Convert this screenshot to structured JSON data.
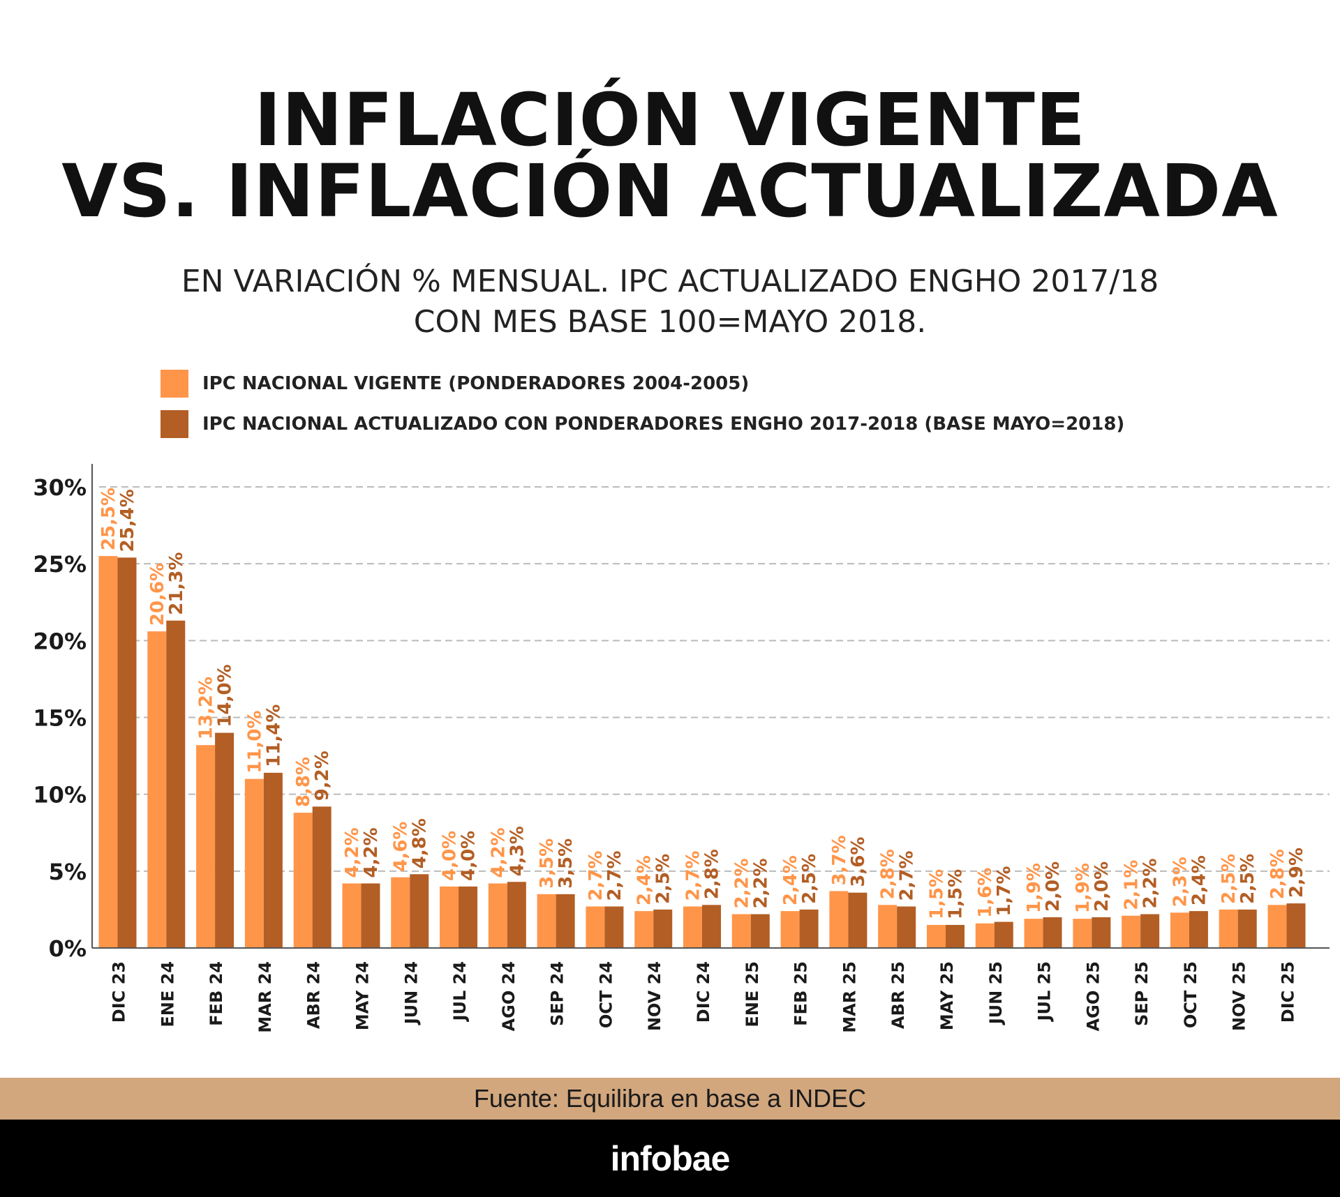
{
  "header": {
    "title_line1": "INFLACIÓN VIGENTE",
    "title_line2": "VS. INFLACIÓN ACTUALIZADA",
    "subtitle_line1": "EN VARIACIÓN % MENSUAL. IPC ACTUALIZADO ENGHO 2017/18",
    "subtitle_line2": "CON MES BASE 100=MAYO 2018."
  },
  "source": "Fuente:  Equilibra en base a INDEC",
  "logo": "infobae",
  "colors": {
    "vigente": "#ff9549",
    "actualizado": "#b35e24",
    "grid": "#bbbbbb",
    "source_band": "#d2a77e"
  },
  "chart_data": {
    "type": "bar",
    "categories": [
      "DIC 23",
      "ENE 24",
      "FEB 24",
      "MAR 24",
      "ABR 24",
      "MAY 24",
      "JUN 24",
      "JUL 24",
      "AGO 24",
      "SEP 24",
      "OCT 24",
      "NOV 24",
      "DIC 24",
      "ENE 25",
      "FEB 25",
      "MAR 25",
      "ABR 25",
      "MAY 25",
      "JUN 25",
      "JUL 25",
      "AGO 25",
      "SEP 25",
      "OCT 25",
      "NOV 25",
      "DIC 25"
    ],
    "series": [
      {
        "name": "IPC NACIONAL VIGENTE (PONDERADORES 2004-2005)",
        "values": [
          25.5,
          20.6,
          13.2,
          11.0,
          8.8,
          4.2,
          4.6,
          4.0,
          4.2,
          3.5,
          2.7,
          2.4,
          2.7,
          2.2,
          2.4,
          3.7,
          2.8,
          1.5,
          1.6,
          1.9,
          1.9,
          2.1,
          2.3,
          2.5,
          2.8
        ],
        "labels": [
          "25,5%",
          "20,6%",
          "13,2%",
          "11,0%",
          "8,8%",
          "4,2%",
          "4,6%",
          "4,0%",
          "4,2%",
          "3,5%",
          "2,7%",
          "2,4%",
          "2,7%",
          "2,2%",
          "2,4%",
          "3,7%",
          "2,8%",
          "1,5%",
          "1,6%",
          "1,9%",
          "1,9%",
          "2,1%",
          "2,3%",
          "2,5%",
          "2,8%"
        ]
      },
      {
        "name": "IPC NACIONAL ACTUALIZADO CON PONDERADORES ENGHO 2017-2018 (BASE MAYO=2018)",
        "values": [
          25.4,
          21.3,
          14.0,
          11.4,
          9.2,
          4.2,
          4.8,
          4.0,
          4.3,
          3.5,
          2.7,
          2.5,
          2.8,
          2.2,
          2.5,
          3.6,
          2.7,
          1.5,
          1.7,
          2.0,
          2.0,
          2.2,
          2.4,
          2.5,
          2.9
        ],
        "labels": [
          "25,4%",
          "21,3%",
          "14,0%",
          "11,4%",
          "9,2%",
          "4,2%",
          "4,8%",
          "4,0%",
          "4,3%",
          "3,5%",
          "2,7%",
          "2,5%",
          "2,8%",
          "2,2%",
          "2,5%",
          "3,6%",
          "2,7%",
          "1,5%",
          "1,7%",
          "2,0%",
          "2,0%",
          "2,2%",
          "2,4%",
          "2,5%",
          "2,9%"
        ]
      }
    ],
    "yticks": [
      0,
      5,
      10,
      15,
      20,
      25,
      30
    ],
    "ytick_labels": [
      "0%",
      "5%",
      "10%",
      "15%",
      "20%",
      "25%",
      "30%"
    ],
    "ylim": [
      0,
      30
    ],
    "grid": true,
    "legend_position": "top-left"
  }
}
